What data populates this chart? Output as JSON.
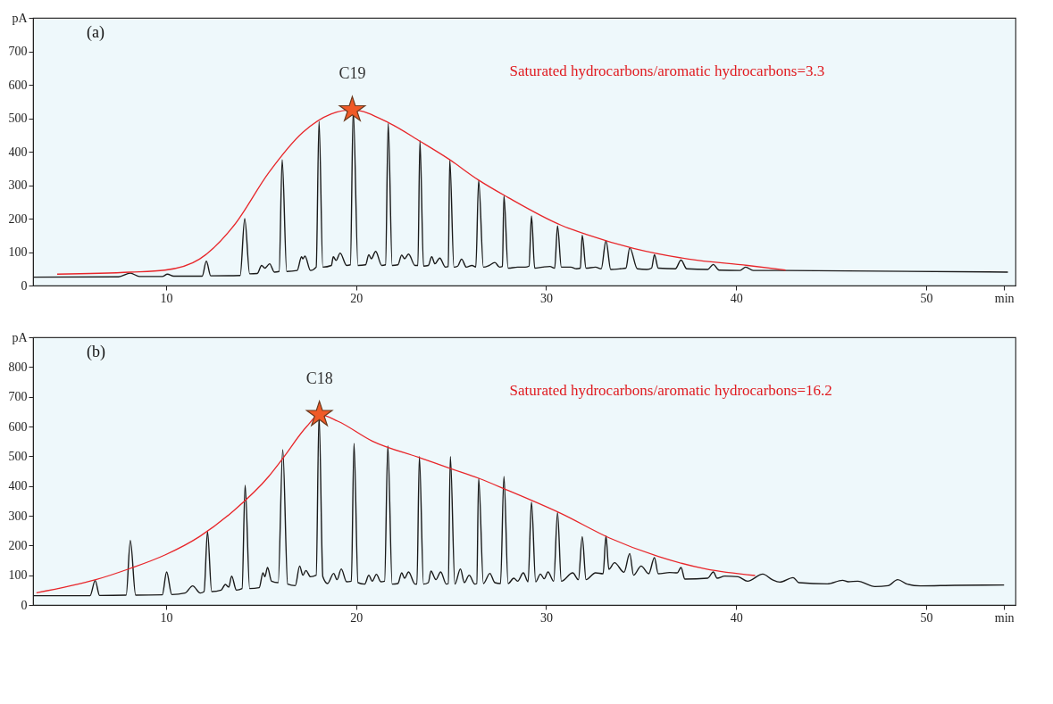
{
  "chart_data": [
    {
      "type": "line",
      "title": "(a)",
      "xlim": [
        3,
        54.7
      ],
      "ylim": [
        0,
        800
      ],
      "xticks": [
        10,
        20,
        30,
        40,
        50,
        {
          "value": 54.1,
          "label": "min"
        }
      ],
      "yticks": [
        0,
        100,
        200,
        300,
        400,
        500,
        600,
        700,
        {
          "value": 800,
          "label": "pA"
        }
      ],
      "grid": false,
      "line_style": "solid",
      "series": [
        {
          "type": "line",
          "color": "#1a1a1a",
          "x": [
            3.0,
            7.5,
            8.12,
            8.6,
            9.8,
            10.07,
            10.4,
            11.9,
            12.12,
            12.35,
            13.9,
            14.14,
            14.4,
            14.8,
            15.03,
            15.2,
            15.45,
            15.7,
            15.95,
            16.11,
            16.35,
            16.9,
            17.13,
            17.2,
            17.31,
            17.6,
            17.9,
            18.05,
            18.25,
            18.7,
            18.8,
            18.95,
            19.16,
            19.5,
            19.7,
            19.85,
            20.1,
            20.5,
            20.67,
            20.8,
            21.03,
            21.35,
            21.55,
            21.69,
            21.9,
            22.2,
            22.4,
            22.55,
            22.76,
            23.1,
            23.25,
            23.36,
            23.55,
            23.8,
            23.98,
            24.15,
            24.4,
            24.7,
            24.85,
            24.93,
            25.15,
            25.35,
            25.55,
            25.8,
            26.1,
            26.3,
            26.45,
            26.7,
            27.0,
            27.3,
            27.55,
            27.7,
            27.78,
            28.0,
            28.5,
            28.9,
            29.1,
            29.23,
            29.4,
            29.8,
            30.2,
            30.45,
            30.6,
            30.8,
            31.3,
            31.6,
            31.8,
            31.9,
            32.1,
            32.6,
            32.9,
            33.15,
            33.4,
            33.9,
            34.2,
            34.4,
            34.8,
            35.3,
            35.55,
            35.7,
            35.9,
            36.8,
            37.1,
            37.4,
            38.5,
            38.8,
            39.1,
            40.2,
            40.5,
            40.9,
            42.6,
            54.3
          ],
          "values": [
            25,
            26,
            37,
            27,
            27,
            34,
            28,
            28,
            73,
            29,
            30,
            200,
            35,
            36,
            60,
            52,
            65,
            40,
            42,
            376,
            42,
            45,
            86,
            80,
            88,
            45,
            55,
            490,
            55,
            60,
            86,
            75,
            97,
            60,
            62,
            525,
            60,
            62,
            92,
            80,
            102,
            60,
            62,
            484,
            60,
            62,
            91,
            80,
            94,
            60,
            60,
            433,
            58,
            60,
            86,
            65,
            82,
            55,
            57,
            376,
            55,
            58,
            79,
            55,
            60,
            55,
            314,
            55,
            60,
            69,
            55,
            57,
            268,
            52,
            55,
            55,
            58,
            208,
            52,
            55,
            57,
            52,
            178,
            55,
            55,
            50,
            52,
            150,
            52,
            55,
            50,
            134,
            48,
            50,
            52,
            113,
            50,
            48,
            52,
            92,
            52,
            50,
            76,
            50,
            48,
            63,
            46,
            45,
            55,
            45,
            45,
            40
          ]
        },
        {
          "type": "line",
          "color": "#e8262a",
          "x": [
            4.27,
            8.12,
            9.94,
            11.76,
            13.58,
            15.4,
            17.2,
            18.7,
            19.8,
            21.76,
            23.4,
            24.85,
            26.45,
            28.0,
            30.8,
            32.1,
            34.6,
            37.5,
            40.6,
            42.6
          ],
          "values": [
            34,
            40,
            46,
            79,
            180,
            337,
            458,
            513,
            525,
            485,
            430,
            379,
            315,
            263,
            180,
            153,
            111,
            79,
            60,
            46
          ]
        },
        {
          "type": "scatter",
          "color": "#f05a28",
          "marker": "star",
          "x": [
            19.8
          ],
          "values": [
            525
          ]
        }
      ],
      "annotations": [
        {
          "text": "C19",
          "x": 19.8,
          "y": 525
        },
        "Saturated hydrocarbons/aromatic hydrocarbons=3.3"
      ]
    },
    {
      "type": "line",
      "title": "(b)",
      "xlim": [
        3,
        54.7
      ],
      "ylim": [
        0,
        900
      ],
      "xticks": [
        10,
        20,
        30,
        40,
        50,
        {
          "value": 54.1,
          "label": "min"
        }
      ],
      "yticks": [
        0,
        100,
        200,
        300,
        400,
        500,
        600,
        700,
        800,
        {
          "value": 900,
          "label": "pA"
        }
      ],
      "grid": false,
      "line_style": "solid",
      "series": [
        {
          "type": "line",
          "color": "#1a1a1a",
          "x": [
            3.0,
            6.0,
            6.27,
            6.5,
            7.9,
            8.12,
            8.4,
            9.8,
            10.03,
            10.3,
            11.0,
            11.4,
            11.8,
            12.0,
            12.18,
            12.4,
            12.9,
            13.12,
            13.3,
            13.45,
            13.7,
            14.0,
            14.16,
            14.4,
            14.9,
            15.1,
            15.2,
            15.34,
            15.55,
            15.9,
            16.14,
            16.4,
            16.8,
            17.03,
            17.2,
            17.36,
            17.6,
            17.9,
            18.05,
            18.25,
            18.5,
            18.82,
            19.0,
            19.22,
            19.5,
            19.75,
            19.89,
            20.1,
            20.45,
            20.67,
            20.85,
            21.07,
            21.3,
            21.5,
            21.67,
            21.9,
            22.2,
            22.4,
            22.55,
            22.76,
            23.1,
            23.2,
            23.33,
            23.55,
            23.8,
            23.94,
            24.2,
            24.45,
            24.75,
            24.85,
            24.96,
            25.2,
            25.49,
            25.7,
            25.95,
            26.25,
            26.35,
            26.45,
            26.7,
            27.04,
            27.3,
            27.6,
            27.78,
            28.0,
            28.3,
            28.5,
            28.8,
            29.05,
            29.23,
            29.45,
            29.7,
            29.9,
            30.1,
            30.4,
            30.6,
            30.8,
            31.4,
            31.7,
            31.9,
            32.1,
            32.6,
            33.0,
            33.15,
            33.3,
            33.6,
            34.1,
            34.4,
            34.6,
            35.0,
            35.4,
            35.7,
            35.9,
            36.5,
            36.9,
            37.1,
            37.3,
            38.5,
            38.8,
            39.0,
            39.4,
            40.1,
            40.6,
            41.4,
            41.9,
            42.3,
            43.0,
            43.3,
            44.8,
            45.6,
            45.9,
            46.4,
            47.3,
            48.0,
            48.5,
            49.0,
            49.7,
            51.5,
            54.1
          ],
          "values": [
            31,
            31,
            82,
            32,
            33,
            217,
            33,
            34,
            111,
            35,
            40,
            64,
            40,
            45,
            247,
            45,
            50,
            69,
            60,
            97,
            50,
            55,
            403,
            55,
            58,
            108,
            95,
            126,
            80,
            75,
            522,
            70,
            65,
            131,
            100,
            116,
            95,
            100,
            640,
            95,
            72,
            106,
            85,
            121,
            78,
            80,
            543,
            75,
            70,
            100,
            80,
            103,
            78,
            80,
            535,
            70,
            72,
            108,
            90,
            111,
            70,
            70,
            499,
            70,
            75,
            114,
            85,
            111,
            70,
            72,
            499,
            70,
            121,
            75,
            100,
            70,
            72,
            426,
            72,
            106,
            75,
            72,
            432,
            72,
            90,
            80,
            108,
            78,
            346,
            78,
            104,
            88,
            111,
            80,
            311,
            80,
            108,
            85,
            230,
            85,
            108,
            105,
            232,
            120,
            142,
            110,
            173,
            100,
            131,
            105,
            159,
            105,
            109,
            108,
            126,
            87,
            90,
            111,
            90,
            97,
            95,
            80,
            104,
            85,
            77,
            92,
            75,
            71,
            83,
            78,
            80,
            62,
            65,
            85,
            70,
            64,
            66,
            67
          ]
        },
        {
          "type": "line",
          "color": "#e8262a",
          "x": [
            3.18,
            6.3,
            8.12,
            9.94,
            11.76,
            13.58,
            15.4,
            16.1,
            17.4,
            18.07,
            19.03,
            20.85,
            23.4,
            25.0,
            26.45,
            28.0,
            30.8,
            33.34,
            35.9,
            38.4,
            41.0
          ],
          "values": [
            41,
            85,
            123,
            168,
            230,
            318,
            432,
            489,
            600,
            640,
            618,
            551,
            494,
            458,
            426,
            385,
            307,
            225,
            163,
            121,
            99
          ]
        },
        {
          "type": "scatter",
          "color": "#f05a28",
          "marker": "star",
          "x": [
            18.07
          ],
          "values": [
            640
          ]
        }
      ],
      "annotations": [
        {
          "text": "C18",
          "x": 18.07,
          "y": 640
        },
        "Saturated hydrocarbons/aromatic hydrocarbons=16.2"
      ]
    }
  ]
}
